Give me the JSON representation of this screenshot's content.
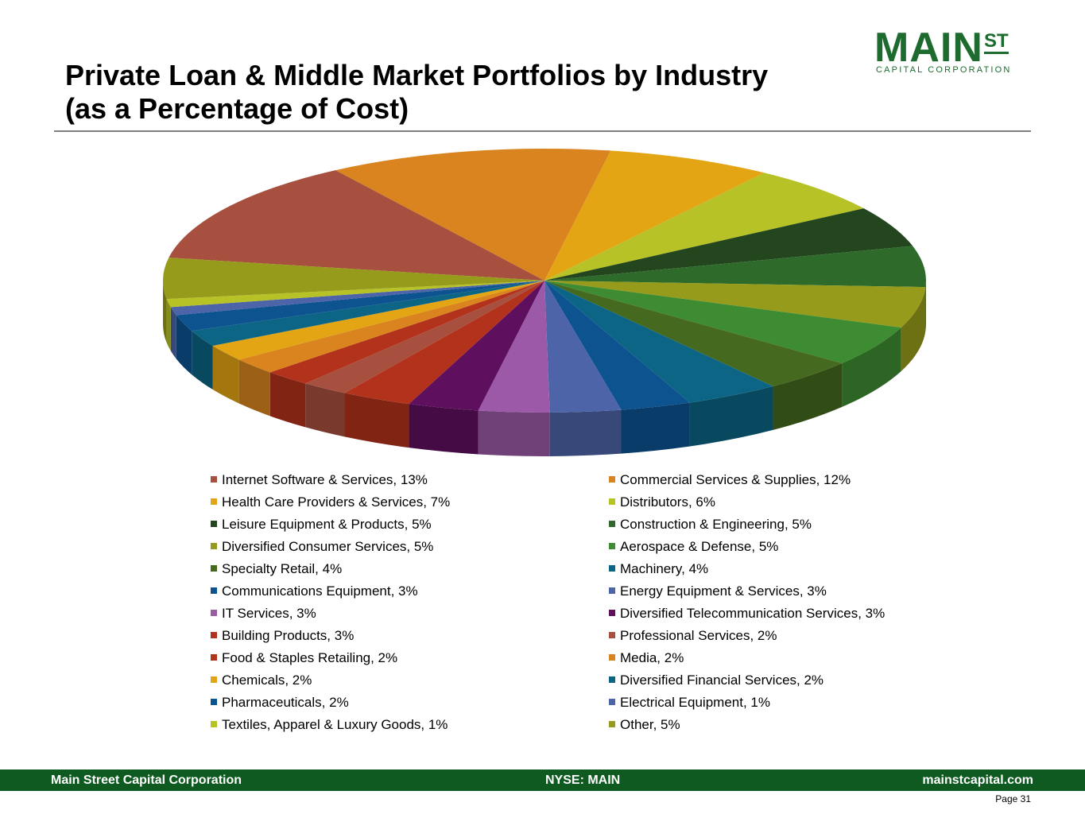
{
  "header": {
    "title_line1": "Private Loan & Middle Market Portfolios by Industry",
    "title_line2": "(as a Percentage of Cost)"
  },
  "logo": {
    "main": "MAIN",
    "st": "ST",
    "subtitle": "CAPITAL CORPORATION",
    "color": "#1d6b2e"
  },
  "chart_data": {
    "type": "pie",
    "style": "3d",
    "legend_position": "bottom",
    "slices": [
      {
        "label": "Internet Software & Services",
        "value": 13,
        "legend": "Internet Software & Services, 13%",
        "color": "#a8503f"
      },
      {
        "label": "Commercial Services & Supplies",
        "value": 12,
        "legend": "Commercial Services & Supplies, 12%",
        "color": "#d9841e"
      },
      {
        "label": "Health Care Providers & Services",
        "value": 7,
        "legend": "Health Care Providers & Services, 7%",
        "color": "#e3a514"
      },
      {
        "label": "Distributors",
        "value": 6,
        "legend": "Distributors, 6%",
        "color": "#b7c226"
      },
      {
        "label": "Leisure Equipment & Products",
        "value": 5,
        "legend": "Leisure Equipment & Products, 5%",
        "color": "#23461f"
      },
      {
        "label": "Construction & Engineering",
        "value": 5,
        "legend": "Construction & Engineering, 5%",
        "color": "#2e6b2a"
      },
      {
        "label": "Diversified Consumer Services",
        "value": 5,
        "legend": "Diversified Consumer Services, 5%",
        "color": "#979b1b"
      },
      {
        "label": "Aerospace & Defense",
        "value": 5,
        "legend": "Aerospace & Defense, 5%",
        "color": "#3e8c32"
      },
      {
        "label": "Specialty Retail",
        "value": 4,
        "legend": "Specialty Retail, 4%",
        "color": "#45691e"
      },
      {
        "label": "Machinery",
        "value": 4,
        "legend": "Machinery, 4%",
        "color": "#0d6585"
      },
      {
        "label": "Communications Equipment",
        "value": 3,
        "legend": "Communications Equipment, 3%",
        "color": "#0d5390"
      },
      {
        "label": "Energy Equipment & Services",
        "value": 3,
        "legend": "Energy Equipment & Services, 3%",
        "color": "#4d64a8"
      },
      {
        "label": "IT Services",
        "value": 3,
        "legend": "IT Services, 3%",
        "color": "#9b59a8"
      },
      {
        "label": "Diversified Telecommunication Services",
        "value": 3,
        "legend": "Diversified Telecommunication Services, 3%",
        "color": "#5e0f5e"
      },
      {
        "label": "Building Products",
        "value": 3,
        "legend": "Building Products, 3%",
        "color": "#b3321c"
      },
      {
        "label": "Professional Services",
        "value": 2,
        "legend": "Professional Services, 2%",
        "color": "#a8503f"
      },
      {
        "label": "Food & Staples Retailing",
        "value": 2,
        "legend": "Food & Staples Retailing, 2%",
        "color": "#b3321c"
      },
      {
        "label": "Media",
        "value": 2,
        "legend": "Media, 2%",
        "color": "#d9841e"
      },
      {
        "label": "Chemicals",
        "value": 2,
        "legend": "Chemicals, 2%",
        "color": "#e3a514"
      },
      {
        "label": "Diversified Financial Services",
        "value": 2,
        "legend": "Diversified Financial Services, 2%",
        "color": "#0d6585"
      },
      {
        "label": "Pharmaceuticals",
        "value": 2,
        "legend": "Pharmaceuticals, 2%",
        "color": "#0d5390"
      },
      {
        "label": "Electrical Equipment",
        "value": 1,
        "legend": "Electrical Equipment, 1%",
        "color": "#4d64a8"
      },
      {
        "label": "Textiles, Apparel & Luxury Goods",
        "value": 1,
        "legend": "Textiles, Apparel & Luxury Goods, 1%",
        "color": "#b7c226"
      },
      {
        "label": "Other",
        "value": 5,
        "legend": "Other, 5%",
        "color": "#979b1b"
      }
    ]
  },
  "footer": {
    "left": "Main Street Capital Corporation",
    "center": "NYSE: MAIN",
    "right": "mainstcapital.com",
    "page": "Page  31",
    "background": "#0e5a20"
  }
}
